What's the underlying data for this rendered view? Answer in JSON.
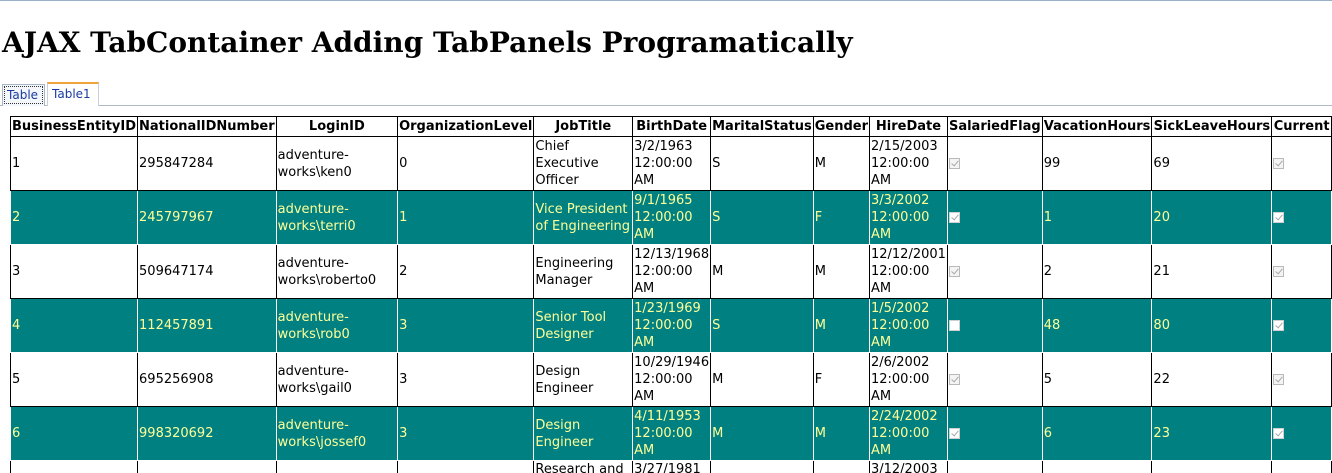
{
  "page_title": "AJAX TabContainer Adding TabPanels Programatically",
  "tabs": [
    {
      "label": "Table"
    },
    {
      "label": "Table1"
    }
  ],
  "table": {
    "columns": [
      "BusinessEntityID",
      "NationalIDNumber",
      "LoginID",
      "OrganizationLevel",
      "JobTitle",
      "BirthDate",
      "MaritalStatus",
      "Gender",
      "HireDate",
      "SalariedFlag",
      "VacationHours",
      "SickLeaveHours",
      "Current"
    ],
    "rows": [
      {
        "id": "1",
        "nid": "295847284",
        "login": "adventure-works\\ken0",
        "org": "0",
        "job": "Chief Executive Officer",
        "birth": "3/2/1963 12:00:00 AM",
        "marital": "S",
        "gender": "M",
        "hire": "2/15/2003 12:00:00 AM",
        "salaried": true,
        "vacation": "99",
        "sick": "69",
        "current": true
      },
      {
        "id": "2",
        "nid": "245797967",
        "login": "adventure-works\\terri0",
        "org": "1",
        "job": "Vice President of Engineering",
        "birth": "9/1/1965 12:00:00 AM",
        "marital": "S",
        "gender": "F",
        "hire": "3/3/2002 12:00:00 AM",
        "salaried": true,
        "vacation": "1",
        "sick": "20",
        "current": true
      },
      {
        "id": "3",
        "nid": "509647174",
        "login": "adventure-works\\roberto0",
        "org": "2",
        "job": "Engineering Manager",
        "birth": "12/13/1968 12:00:00 AM",
        "marital": "M",
        "gender": "M",
        "hire": "12/12/2001 12:00:00 AM",
        "salaried": true,
        "vacation": "2",
        "sick": "21",
        "current": true
      },
      {
        "id": "4",
        "nid": "112457891",
        "login": "adventure-works\\rob0",
        "org": "3",
        "job": "Senior Tool Designer",
        "birth": "1/23/1969 12:00:00 AM",
        "marital": "S",
        "gender": "M",
        "hire": "1/5/2002 12:00:00 AM",
        "salaried": false,
        "vacation": "48",
        "sick": "80",
        "current": true
      },
      {
        "id": "5",
        "nid": "695256908",
        "login": "adventure-works\\gail0",
        "org": "3",
        "job": "Design Engineer",
        "birth": "10/29/1946 12:00:00 AM",
        "marital": "M",
        "gender": "F",
        "hire": "2/6/2002 12:00:00 AM",
        "salaried": true,
        "vacation": "5",
        "sick": "22",
        "current": true
      },
      {
        "id": "6",
        "nid": "998320692",
        "login": "adventure-works\\jossef0",
        "org": "3",
        "job": "Design Engineer",
        "birth": "4/11/1953 12:00:00 AM",
        "marital": "M",
        "gender": "M",
        "hire": "2/24/2002 12:00:00 AM",
        "salaried": true,
        "vacation": "6",
        "sick": "23",
        "current": true
      }
    ],
    "partial_row": {
      "job": "Research and",
      "birth": "3/27/1981",
      "hire": "3/12/2003"
    }
  },
  "colors": {
    "alt_row_bg": "#008080",
    "alt_row_text": "#ffff99",
    "active_tab_accent": "#f0a33a",
    "tab_text": "#1a3aa0"
  }
}
